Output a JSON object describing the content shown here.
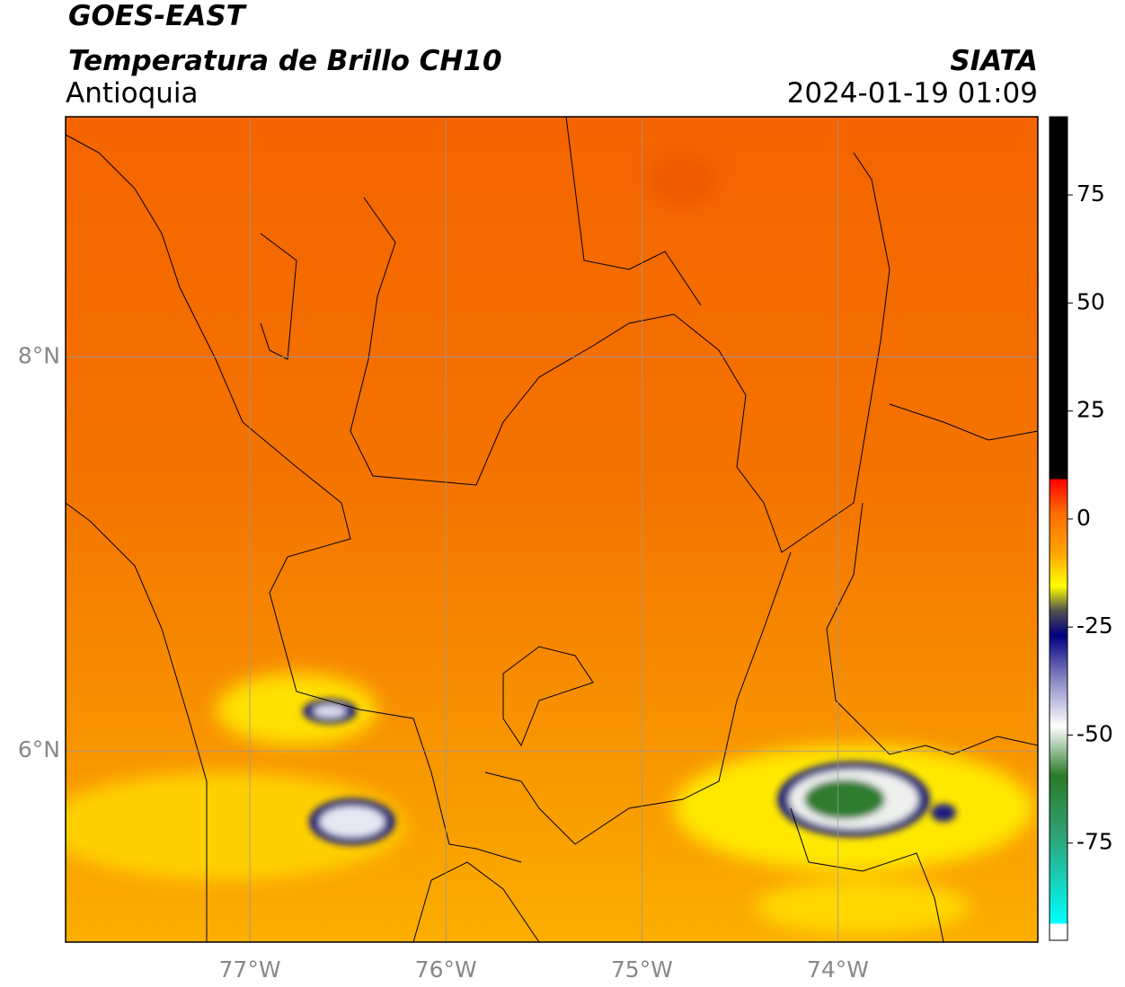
{
  "map": {
    "satellite": "GOES-EAST",
    "title": "Temperatura de Brillo CH10",
    "region": "Antioquia",
    "source": "SIATA",
    "datetime": "2024-01-19 01:09",
    "xlim": [
      -77.94,
      -72.98
    ],
    "ylim": [
      5.03,
      9.22
    ],
    "xticks": [
      {
        "value": -77,
        "label": "77°W"
      },
      {
        "value": -76,
        "label": "76°W"
      },
      {
        "value": -75,
        "label": "75°W"
      },
      {
        "value": -74,
        "label": "74°W"
      }
    ],
    "yticks": [
      {
        "value": 8,
        "label": "8°N"
      },
      {
        "value": 6,
        "label": "6°N"
      }
    ],
    "grid": true,
    "colorbar": {
      "lim": [
        -97.5,
        93.1
      ],
      "ticks": [
        75,
        50,
        25,
        0,
        -25,
        -50,
        -75
      ]
    }
  }
}
